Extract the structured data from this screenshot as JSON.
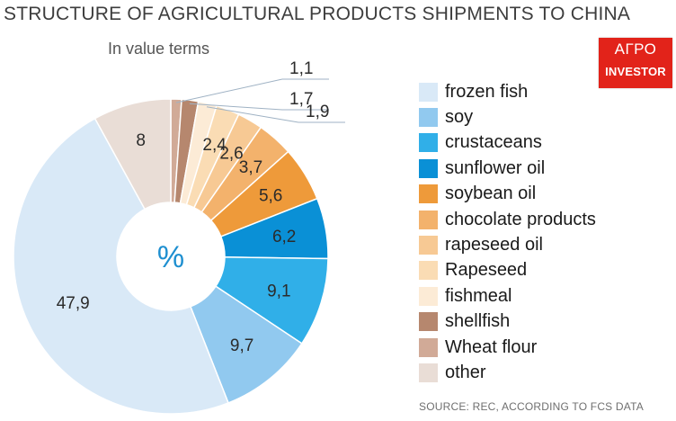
{
  "title": "STRUCTURE OF AGRICULTURAL PRODUCTS SHIPMENTS TO CHINA",
  "subtitle": "In value terms",
  "center_label": "%",
  "source": "SOURCE: REC, ACCORDING TO FCS DATA",
  "logo": {
    "line1": "АГРО",
    "line2": "INVESTOR",
    "color": "#e2231a"
  },
  "chart_data": {
    "type": "pie",
    "donut": true,
    "title": "STRUCTURE OF AGRICULTURAL PRODUCTS SHIPMENTS TO CHINA",
    "subtitle": "In value terms",
    "center_label": "%",
    "legend_position": "right",
    "slices": [
      {
        "name": "frozen fish",
        "value": 47.9,
        "label": "47,9",
        "color": "#d9e9f7"
      },
      {
        "name": "soy",
        "value": 9.7,
        "label": "9,7",
        "color": "#91c9ef"
      },
      {
        "name": "crustaceans",
        "value": 9.1,
        "label": "9,1",
        "color": "#30afe8"
      },
      {
        "name": "sunflower oil",
        "value": 6.2,
        "label": "6,2",
        "color": "#0a90d6"
      },
      {
        "name": "soybean oil",
        "value": 5.6,
        "label": "5,6",
        "color": "#ee9a3a"
      },
      {
        "name": "chocolate products",
        "value": 3.7,
        "label": "3,7",
        "color": "#f3b26c"
      },
      {
        "name": "rapeseed oil",
        "value": 2.6,
        "label": "2,6",
        "color": "#f7c994"
      },
      {
        "name": "Rapeseed",
        "value": 2.4,
        "label": "2,4",
        "color": "#fadcb4"
      },
      {
        "name": "fishmeal",
        "value": 1.9,
        "label": "1,9",
        "color": "#fcebd6"
      },
      {
        "name": "shellfish",
        "value": 1.7,
        "label": "1,7",
        "color": "#b6876e"
      },
      {
        "name": "Wheat flour",
        "value": 1.1,
        "label": "1,1",
        "color": "#d1aa97"
      },
      {
        "name": "other",
        "value": 8,
        "label": "8",
        "color": "#e9ddd6"
      }
    ]
  }
}
